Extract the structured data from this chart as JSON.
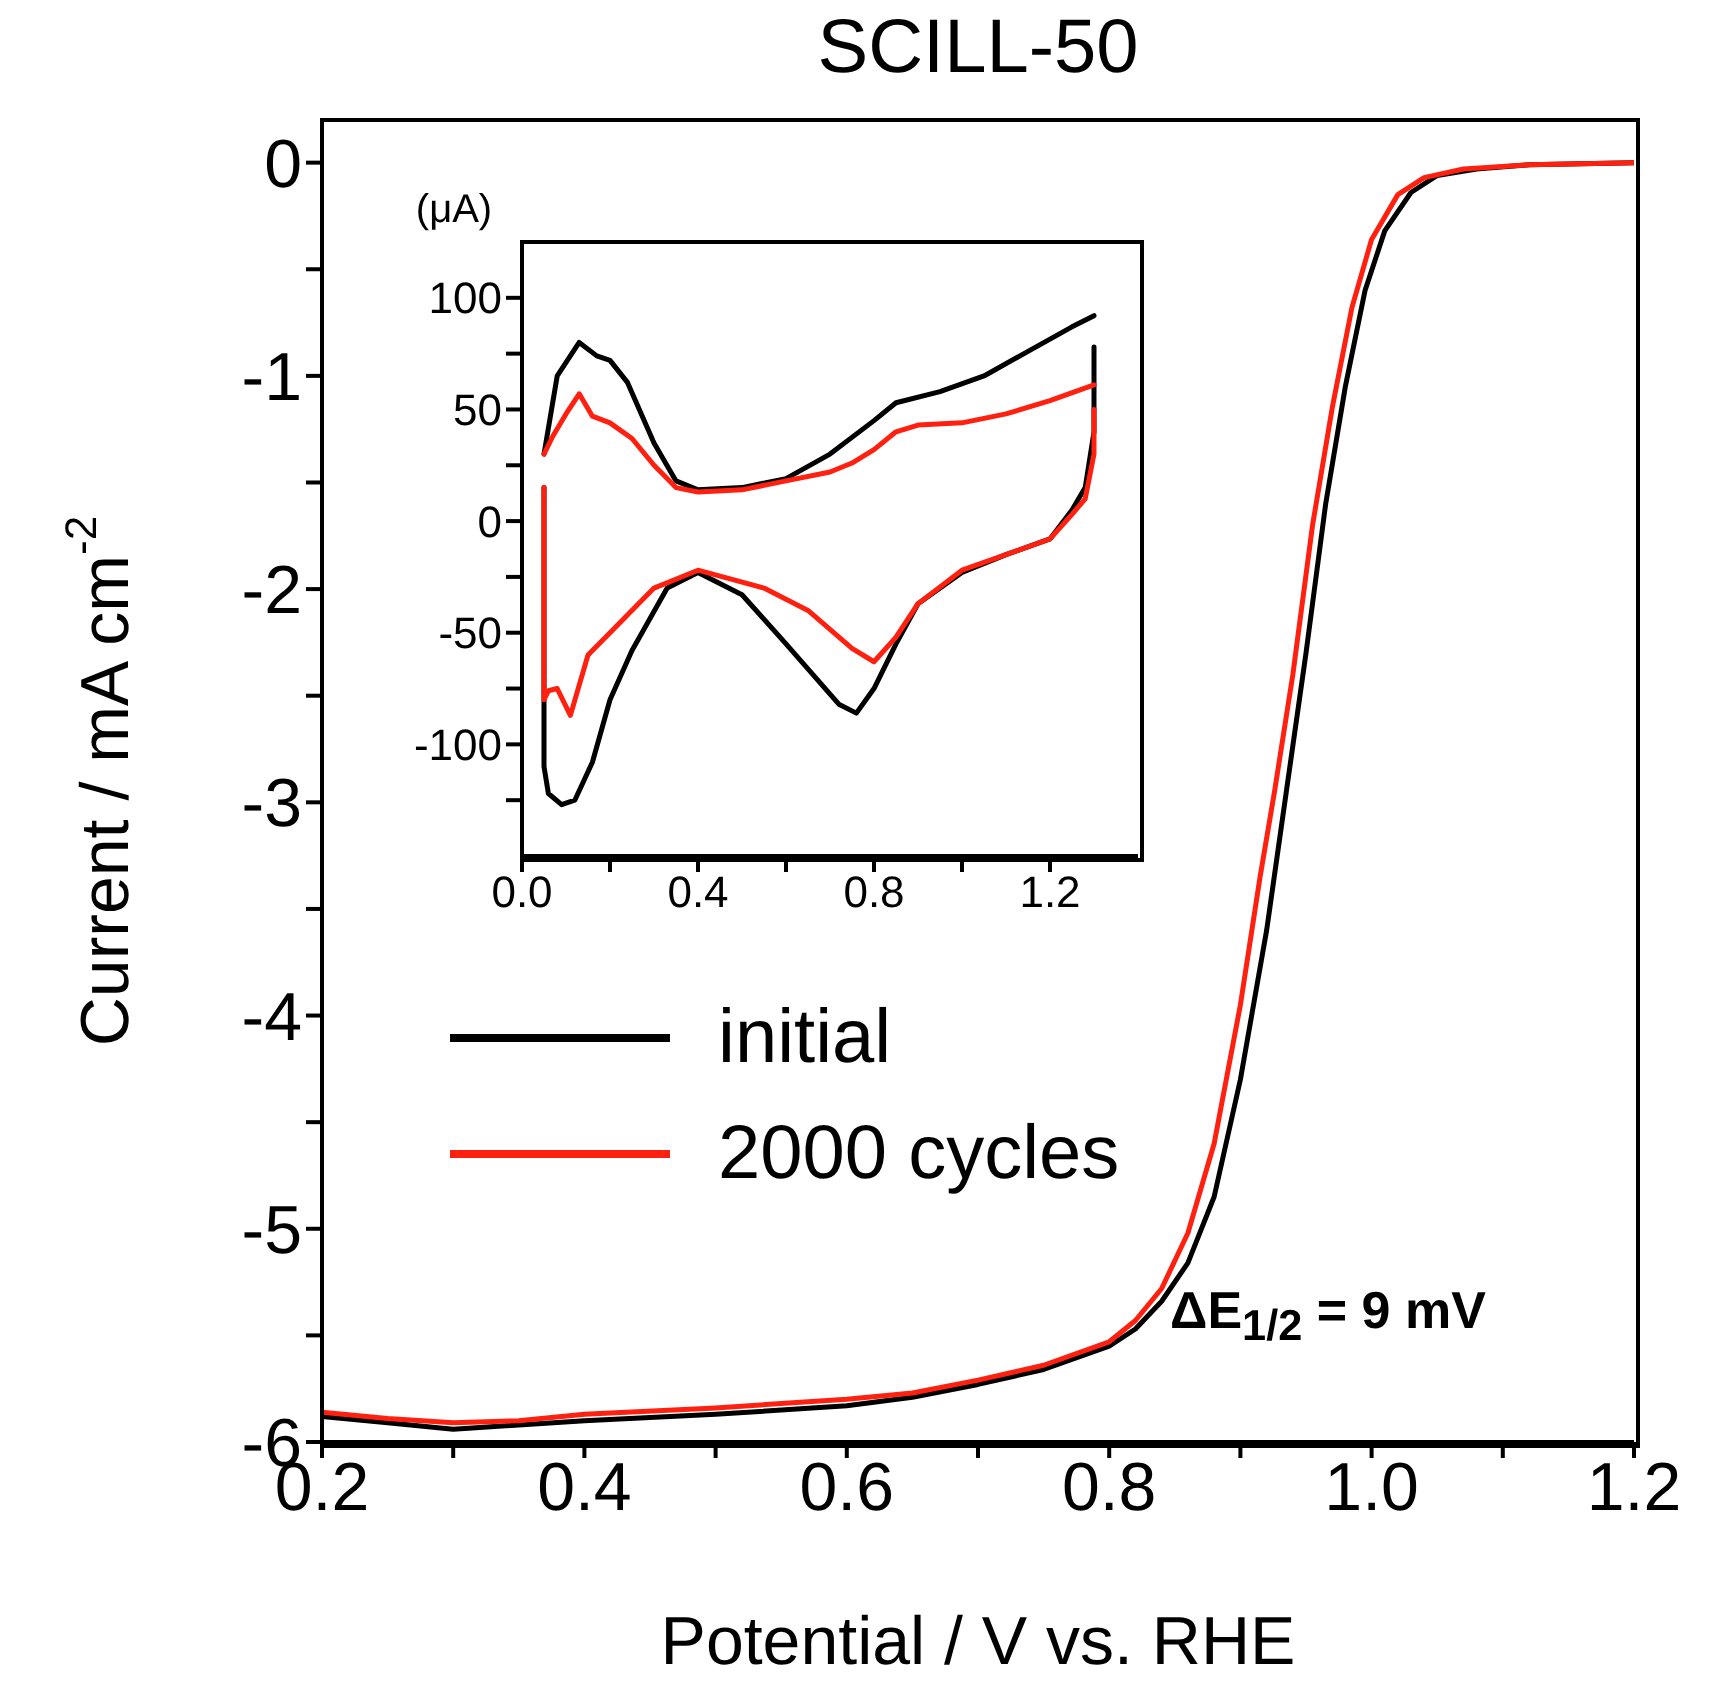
{
  "chart_data": [
    {
      "type": "line",
      "title": "SCILL-50",
      "xlabel": "Potential / V vs. RHE",
      "ylabel": "Current / mA cm$^{-2}$",
      "legend": "left",
      "xlim": [
        0.2,
        1.2
      ],
      "ylim": [
        -6,
        0.2
      ],
      "xticks": [
        0.2,
        {
          "value": 0.3,
          "label": null
        },
        0.4,
        {
          "value": 0.5,
          "label": null
        },
        0.6,
        {
          "value": 0.7,
          "label": null
        },
        0.8,
        {
          "value": 0.9,
          "label": null
        },
        {
          "value": 1,
          "label": "1.0"
        },
        {
          "value": 1.1,
          "label": null
        },
        1.2
      ],
      "yticks": [
        -6,
        {
          "value": -5.5,
          "label": null
        },
        -5,
        {
          "value": -4.5,
          "label": null
        },
        -4,
        {
          "value": -3.5,
          "label": null
        },
        -3,
        {
          "value": -2.5,
          "label": null
        },
        -2,
        {
          "value": -1.5,
          "label": null
        },
        -1,
        {
          "value": -0.5,
          "label": null
        },
        0
      ],
      "annotations": [
        "ΔE$_{1/2}$ = 9 mV"
      ],
      "series": [
        {
          "name": "initial",
          "color": "#000000",
          "x": [
            0.2,
            0.25,
            0.3,
            0.35,
            0.4,
            0.5,
            0.6,
            0.65,
            0.7,
            0.75,
            0.8,
            0.82,
            0.84,
            0.86,
            0.88,
            0.9,
            0.92,
            0.935,
            0.95,
            0.965,
            0.98,
            0.995,
            1.01,
            1.03,
            1.05,
            1.08,
            1.12,
            1.2
          ],
          "values": [
            -5.88,
            -5.91,
            -5.94,
            -5.92,
            -5.9,
            -5.87,
            -5.83,
            -5.79,
            -5.73,
            -5.66,
            -5.55,
            -5.47,
            -5.34,
            -5.16,
            -4.85,
            -4.3,
            -3.6,
            -2.95,
            -2.3,
            -1.6,
            -1.05,
            -0.6,
            -0.32,
            -0.14,
            -0.06,
            -0.03,
            -0.01,
            0
          ]
        },
        {
          "name": "2000 cycles",
          "color": "#ff2010",
          "x": [
            0.2,
            0.25,
            0.3,
            0.35,
            0.4,
            0.5,
            0.6,
            0.65,
            0.7,
            0.75,
            0.8,
            0.82,
            0.84,
            0.86,
            0.88,
            0.9,
            0.915,
            0.926,
            0.94,
            0.955,
            0.97,
            0.985,
            1.0,
            1.02,
            1.04,
            1.07,
            1.12,
            1.2
          ],
          "values": [
            -5.86,
            -5.89,
            -5.91,
            -5.9,
            -5.87,
            -5.84,
            -5.8,
            -5.77,
            -5.71,
            -5.64,
            -5.53,
            -5.43,
            -5.28,
            -5.02,
            -4.6,
            -3.95,
            -3.35,
            -2.95,
            -2.4,
            -1.7,
            -1.15,
            -0.68,
            -0.36,
            -0.15,
            -0.07,
            -0.03,
            -0.01,
            0
          ]
        }
      ]
    },
    {
      "type": "line",
      "ylabel": "(μA)",
      "xlim": [
        0,
        1.4
      ],
      "ylim": [
        -150,
        125
      ],
      "xticks": [
        {
          "value": 0,
          "label": "0.0"
        },
        {
          "value": 0.2,
          "label": null
        },
        0.4,
        {
          "value": 0.6,
          "label": null
        },
        0.8,
        {
          "value": 1,
          "label": null
        },
        1.2
      ],
      "yticks": [
        {
          "value": -125,
          "label": null
        },
        -100,
        {
          "value": -75,
          "label": null
        },
        -50,
        {
          "value": -25,
          "label": null
        },
        0,
        {
          "value": 25,
          "label": null
        },
        50,
        {
          "value": 75,
          "label": null
        },
        100
      ],
      "series": [
        {
          "color": "#000000",
          "x": [
            0.05,
            0.08,
            0.13,
            0.17,
            0.2,
            0.24,
            0.3,
            0.35,
            0.4,
            0.5,
            0.6,
            0.7,
            0.8,
            0.85,
            0.95,
            1.05,
            1.15,
            1.25,
            1.3
          ],
          "values": [
            30,
            65,
            80,
            74,
            72,
            62,
            35,
            18,
            14,
            15,
            19,
            30,
            45,
            53,
            58,
            65,
            76,
            87,
            92
          ]
        },
        {
          "color": "#000000",
          "x": [
            0.05,
            0.05,
            0.05,
            0.06,
            0.09,
            0.12,
            0.16,
            0.2,
            0.25,
            0.33,
            0.4,
            0.5,
            0.6,
            0.72,
            0.76,
            0.8,
            0.85,
            0.9,
            1.0,
            1.1,
            1.2,
            1.25,
            1.28,
            1.3,
            1.3
          ],
          "values": [
            15,
            -60,
            -110,
            -122,
            -127,
            -125,
            -108,
            -80,
            -58,
            -30,
            -23,
            -33,
            -55,
            -82,
            -86,
            -75,
            -55,
            -37,
            -23,
            -15,
            -8,
            5,
            15,
            40,
            78
          ]
        },
        {
          "color": "#ff2010",
          "x": [
            0.05,
            0.07,
            0.1,
            0.13,
            0.16,
            0.2,
            0.25,
            0.3,
            0.35,
            0.4,
            0.5,
            0.6,
            0.7,
            0.75,
            0.8,
            0.85,
            0.9,
            1.0,
            1.1,
            1.2,
            1.3
          ],
          "values": [
            30,
            38,
            48,
            57,
            47,
            44,
            37,
            25,
            15,
            13,
            14,
            18,
            22,
            26,
            32,
            40,
            43,
            44,
            48,
            54,
            61
          ]
        },
        {
          "color": "#ff2010",
          "x": [
            0.05,
            0.05,
            0.05,
            0.06,
            0.08,
            0.11,
            0.15,
            0.2,
            0.3,
            0.4,
            0.55,
            0.65,
            0.75,
            0.8,
            0.85,
            0.9,
            1.0,
            1.1,
            1.2,
            1.25,
            1.28,
            1.3,
            1.3
          ],
          "values": [
            15,
            -40,
            -80,
            -76,
            -75,
            -87,
            -60,
            -50,
            -30,
            -22,
            -30,
            -40,
            -57,
            -63,
            -52,
            -37,
            -22,
            -15,
            -8,
            3,
            10,
            30,
            50
          ]
        }
      ]
    }
  ]
}
